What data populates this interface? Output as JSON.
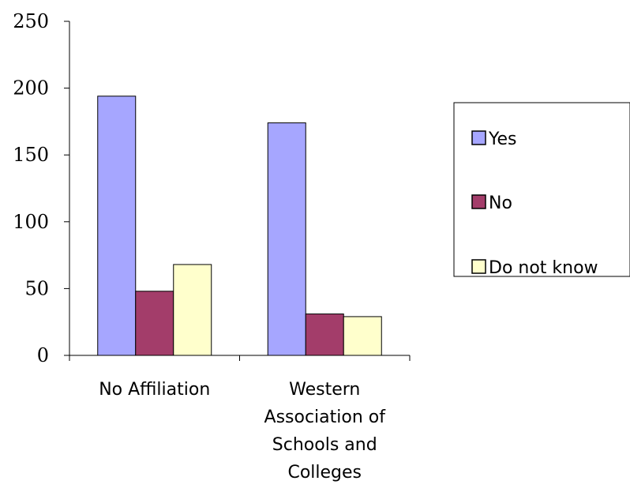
{
  "chart_data": {
    "type": "bar",
    "title": "",
    "xlabel": "",
    "ylabel": "",
    "ylim": [
      0,
      250
    ],
    "yticks": [
      0,
      50,
      100,
      150,
      200,
      250
    ],
    "grid": false,
    "legend_position": "right",
    "categories": [
      [
        "No Affiliation"
      ],
      [
        "Western",
        "Association of",
        "Schools and",
        "Colleges"
      ]
    ],
    "series": [
      {
        "name": "Yes",
        "color": "#A6A6FF",
        "values": [
          194,
          174
        ]
      },
      {
        "name": "No",
        "color": "#A33D6A",
        "values": [
          48,
          31
        ]
      },
      {
        "name": "Do not know",
        "color": "#FFFFCC",
        "values": [
          68,
          29
        ]
      }
    ]
  }
}
